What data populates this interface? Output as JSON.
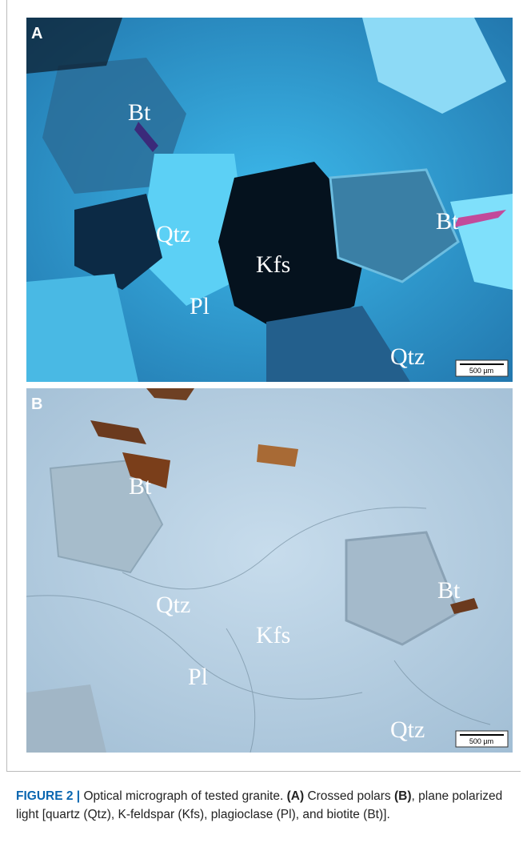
{
  "panels": [
    {
      "letter": "A",
      "labels": [
        "Bt",
        "Qtz",
        "Kfs",
        "Pl",
        "Bt",
        "Qtz"
      ],
      "scale_bar": "500 µm"
    },
    {
      "letter": "B",
      "labels": [
        "Bt",
        "Qtz",
        "Kfs",
        "Pl",
        "Bt",
        "Qtz"
      ],
      "scale_bar": "500 µm"
    }
  ],
  "caption": {
    "label": "FIGURE 2 |",
    "text1": " Optical micrograph of tested granite. ",
    "ref_a": "(A)",
    "text2": " Crossed polars ",
    "ref_b": "(B)",
    "text3": ", plane polarized light [quartz (Qtz), K-feldspar (Kfs), plagioclase (Pl), and biotite (Bt)]."
  }
}
